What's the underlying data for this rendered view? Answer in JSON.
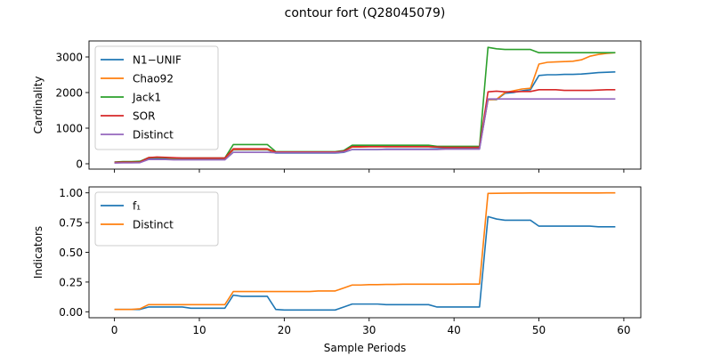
{
  "figure": {
    "title": "contour fort (Q28045079)"
  },
  "chart_data": [
    {
      "type": "line",
      "title": "",
      "xlabel": "",
      "ylabel": "Cardinality",
      "xlim": [
        -3,
        62
      ],
      "ylim": [
        -150,
        3450
      ],
      "xticks": [
        0,
        10,
        20,
        30,
        40,
        50,
        60
      ],
      "yticks": [
        0,
        1000,
        2000,
        3000
      ],
      "legend_position": "upper-left",
      "series": [
        {
          "name": "N1−UNIF",
          "color": "#1f77b4",
          "x": [
            0,
            1,
            2,
            3,
            4,
            5,
            6,
            7,
            8,
            9,
            10,
            11,
            12,
            13,
            14,
            15,
            16,
            17,
            18,
            19,
            20,
            21,
            22,
            23,
            24,
            25,
            26,
            27,
            28,
            29,
            30,
            31,
            32,
            33,
            34,
            35,
            36,
            37,
            38,
            39,
            40,
            41,
            42,
            43,
            44,
            45,
            46,
            47,
            48,
            49,
            50,
            51,
            52,
            53,
            54,
            55,
            56,
            57,
            58,
            59
          ],
          "y": [
            30,
            35,
            35,
            40,
            140,
            150,
            140,
            130,
            130,
            130,
            130,
            130,
            130,
            130,
            390,
            390,
            390,
            390,
            390,
            300,
            300,
            300,
            300,
            300,
            300,
            300,
            300,
            320,
            400,
            400,
            400,
            400,
            410,
            410,
            410,
            410,
            410,
            410,
            420,
            430,
            430,
            430,
            430,
            430,
            1800,
            1800,
            1980,
            2000,
            2050,
            2080,
            2480,
            2500,
            2500,
            2510,
            2510,
            2520,
            2540,
            2560,
            2570,
            2580
          ]
        },
        {
          "name": "Chao92",
          "color": "#ff7f0e",
          "x": [
            0,
            1,
            2,
            3,
            4,
            5,
            6,
            7,
            8,
            9,
            10,
            11,
            12,
            13,
            14,
            15,
            16,
            17,
            18,
            19,
            20,
            21,
            22,
            23,
            24,
            25,
            26,
            27,
            28,
            29,
            30,
            31,
            32,
            33,
            34,
            35,
            36,
            37,
            38,
            39,
            40,
            41,
            42,
            43,
            44,
            45,
            46,
            47,
            48,
            49,
            50,
            51,
            52,
            53,
            54,
            55,
            56,
            57,
            58,
            59
          ],
          "y": [
            40,
            40,
            40,
            50,
            170,
            180,
            170,
            150,
            150,
            150,
            150,
            150,
            150,
            150,
            400,
            400,
            400,
            400,
            400,
            320,
            320,
            330,
            330,
            330,
            330,
            330,
            330,
            350,
            470,
            470,
            480,
            480,
            480,
            480,
            480,
            480,
            480,
            480,
            470,
            460,
            460,
            460,
            460,
            460,
            1800,
            1810,
            2000,
            2050,
            2100,
            2120,
            2800,
            2850,
            2860,
            2870,
            2880,
            2920,
            3020,
            3070,
            3100,
            3120
          ]
        },
        {
          "name": "Jack1",
          "color": "#2ca02c",
          "x": [
            0,
            1,
            2,
            3,
            4,
            5,
            6,
            7,
            8,
            9,
            10,
            11,
            12,
            13,
            14,
            15,
            16,
            17,
            18,
            19,
            20,
            21,
            22,
            23,
            24,
            25,
            26,
            27,
            28,
            29,
            30,
            31,
            32,
            33,
            34,
            35,
            36,
            37,
            38,
            39,
            40,
            41,
            42,
            43,
            44,
            45,
            46,
            47,
            48,
            49,
            50,
            51,
            52,
            53,
            54,
            55,
            56,
            57,
            58,
            59
          ],
          "y": [
            50,
            60,
            60,
            70,
            170,
            180,
            170,
            160,
            160,
            160,
            160,
            160,
            160,
            160,
            540,
            540,
            540,
            540,
            540,
            340,
            340,
            340,
            340,
            340,
            340,
            340,
            340,
            370,
            520,
            520,
            520,
            520,
            520,
            520,
            520,
            520,
            520,
            520,
            490,
            490,
            490,
            490,
            490,
            490,
            3270,
            3230,
            3210,
            3210,
            3210,
            3210,
            3120,
            3120,
            3120,
            3120,
            3120,
            3120,
            3120,
            3120,
            3120,
            3120
          ]
        },
        {
          "name": "SOR",
          "color": "#d62728",
          "x": [
            0,
            1,
            2,
            3,
            4,
            5,
            6,
            7,
            8,
            9,
            10,
            11,
            12,
            13,
            14,
            15,
            16,
            17,
            18,
            19,
            20,
            21,
            22,
            23,
            24,
            25,
            26,
            27,
            28,
            29,
            30,
            31,
            32,
            33,
            34,
            35,
            36,
            37,
            38,
            39,
            40,
            41,
            42,
            43,
            44,
            45,
            46,
            47,
            48,
            49,
            50,
            51,
            52,
            53,
            54,
            55,
            56,
            57,
            58,
            59
          ],
          "y": [
            40,
            45,
            45,
            50,
            170,
            190,
            180,
            170,
            160,
            160,
            160,
            160,
            160,
            160,
            420,
            420,
            420,
            420,
            420,
            330,
            330,
            330,
            330,
            330,
            330,
            330,
            330,
            350,
            480,
            480,
            480,
            480,
            480,
            480,
            480,
            480,
            480,
            480,
            470,
            460,
            460,
            460,
            460,
            460,
            2020,
            2040,
            2020,
            2020,
            2030,
            2030,
            2080,
            2080,
            2080,
            2060,
            2060,
            2060,
            2060,
            2070,
            2080,
            2080
          ]
        },
        {
          "name": "Distinct",
          "color": "#9467bd",
          "x": [
            0,
            1,
            2,
            3,
            4,
            5,
            6,
            7,
            8,
            9,
            10,
            11,
            12,
            13,
            14,
            15,
            16,
            17,
            18,
            19,
            20,
            21,
            22,
            23,
            24,
            25,
            26,
            27,
            28,
            29,
            30,
            31,
            32,
            33,
            34,
            35,
            36,
            37,
            38,
            39,
            40,
            41,
            42,
            43,
            44,
            45,
            46,
            47,
            48,
            49,
            50,
            51,
            52,
            53,
            54,
            55,
            56,
            57,
            58,
            59
          ],
          "y": [
            20,
            25,
            25,
            30,
            120,
            120,
            120,
            110,
            110,
            110,
            110,
            110,
            110,
            110,
            320,
            320,
            320,
            320,
            320,
            310,
            310,
            310,
            310,
            310,
            310,
            310,
            310,
            330,
            400,
            400,
            400,
            400,
            400,
            400,
            400,
            400,
            400,
            400,
            400,
            410,
            410,
            410,
            410,
            410,
            1820,
            1820,
            1820,
            1820,
            1820,
            1820,
            1820,
            1820,
            1820,
            1820,
            1820,
            1820,
            1820,
            1820,
            1820,
            1820
          ]
        }
      ]
    },
    {
      "type": "line",
      "title": "",
      "xlabel": "Sample Periods",
      "ylabel": "Indicators",
      "xlim": [
        -3,
        62
      ],
      "ylim": [
        -0.05,
        1.05
      ],
      "xticks": [
        0,
        10,
        20,
        30,
        40,
        50,
        60
      ],
      "yticks": [
        0.0,
        0.25,
        0.5,
        0.75,
        1.0
      ],
      "ytick_labels": [
        "0.00",
        "0.25",
        "0.50",
        "0.75",
        "1.00"
      ],
      "legend_position": "upper-left",
      "series": [
        {
          "name": "f₁",
          "color": "#1f77b4",
          "x": [
            0,
            1,
            2,
            3,
            4,
            5,
            6,
            7,
            8,
            9,
            10,
            11,
            12,
            13,
            14,
            15,
            16,
            17,
            18,
            19,
            20,
            21,
            22,
            23,
            24,
            25,
            26,
            27,
            28,
            29,
            30,
            31,
            32,
            33,
            34,
            35,
            36,
            37,
            38,
            39,
            40,
            41,
            42,
            43,
            44,
            45,
            46,
            47,
            48,
            49,
            50,
            51,
            52,
            53,
            54,
            55,
            56,
            57,
            58,
            59
          ],
          "y": [
            0.02,
            0.02,
            0.02,
            0.02,
            0.04,
            0.04,
            0.04,
            0.04,
            0.04,
            0.03,
            0.03,
            0.03,
            0.03,
            0.03,
            0.14,
            0.13,
            0.13,
            0.13,
            0.13,
            0.02,
            0.015,
            0.015,
            0.015,
            0.015,
            0.015,
            0.015,
            0.015,
            0.04,
            0.065,
            0.065,
            0.065,
            0.065,
            0.06,
            0.06,
            0.06,
            0.06,
            0.06,
            0.06,
            0.04,
            0.04,
            0.04,
            0.04,
            0.04,
            0.04,
            0.8,
            0.78,
            0.77,
            0.77,
            0.77,
            0.77,
            0.72,
            0.72,
            0.72,
            0.72,
            0.72,
            0.72,
            0.72,
            0.715,
            0.715,
            0.715
          ]
        },
        {
          "name": "Distinct",
          "color": "#ff7f0e",
          "x": [
            0,
            1,
            2,
            3,
            4,
            5,
            6,
            7,
            8,
            9,
            10,
            11,
            12,
            13,
            14,
            15,
            16,
            17,
            18,
            19,
            20,
            21,
            22,
            23,
            24,
            25,
            26,
            27,
            28,
            29,
            30,
            31,
            32,
            33,
            34,
            35,
            36,
            37,
            38,
            39,
            40,
            41,
            42,
            43,
            44,
            45,
            46,
            47,
            48,
            49,
            50,
            51,
            52,
            53,
            54,
            55,
            56,
            57,
            58,
            59
          ],
          "y": [
            0.02,
            0.02,
            0.02,
            0.025,
            0.06,
            0.06,
            0.06,
            0.06,
            0.06,
            0.06,
            0.06,
            0.06,
            0.06,
            0.06,
            0.17,
            0.17,
            0.17,
            0.17,
            0.17,
            0.17,
            0.17,
            0.17,
            0.17,
            0.17,
            0.175,
            0.175,
            0.175,
            0.2,
            0.225,
            0.225,
            0.228,
            0.228,
            0.23,
            0.23,
            0.232,
            0.232,
            0.232,
            0.232,
            0.232,
            0.232,
            0.232,
            0.233,
            0.233,
            0.233,
            0.995,
            0.996,
            0.997,
            0.998,
            0.998,
            0.999,
            0.999,
            0.999,
            0.999,
            0.999,
            0.999,
            0.999,
            0.999,
            0.999,
            1.0,
            1.0
          ]
        }
      ]
    }
  ]
}
